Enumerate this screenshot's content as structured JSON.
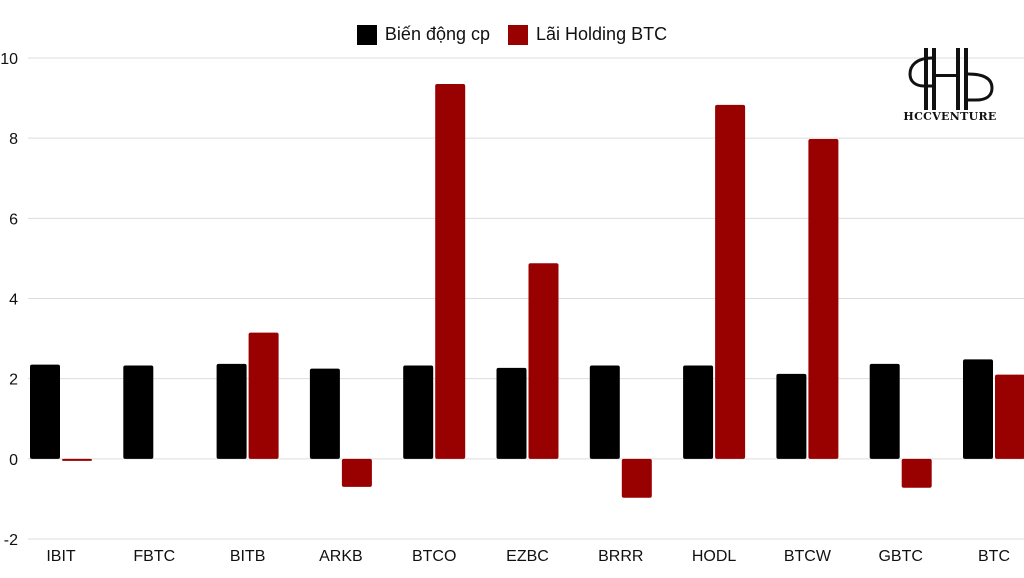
{
  "chart_data": {
    "type": "bar",
    "categories": [
      "IBIT",
      "FBTC",
      "BITB",
      "ARKB",
      "BTCO",
      "EZBC",
      "BRRR",
      "HODL",
      "BTCW",
      "GBTC",
      "BTC"
    ],
    "series": [
      {
        "name": "Biến động cp",
        "color": "#000000",
        "values": [
          2.35,
          2.33,
          2.37,
          2.25,
          2.33,
          2.27,
          2.33,
          2.33,
          2.12,
          2.37,
          2.48
        ]
      },
      {
        "name": "Lãi Holding BTC",
        "color": "#990000",
        "values": [
          -0.05,
          0,
          3.15,
          -0.7,
          9.35,
          4.88,
          -0.97,
          8.83,
          7.98,
          -0.72,
          2.1
        ]
      }
    ],
    "yticks": [
      -2,
      0,
      2,
      4,
      6,
      8,
      10
    ],
    "ylim": [
      -2,
      10
    ],
    "grid": true,
    "legend": "top-center"
  },
  "watermark": {
    "text": "HCCVENTURE"
  }
}
